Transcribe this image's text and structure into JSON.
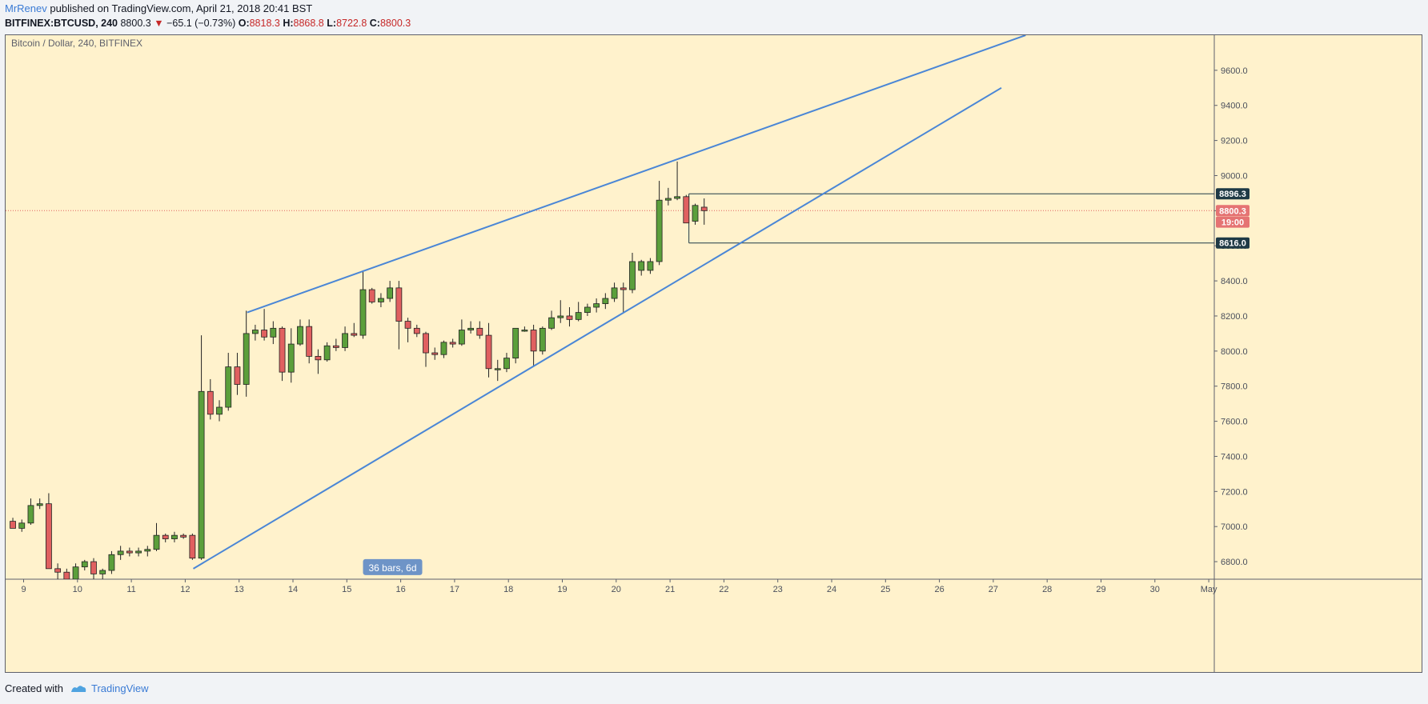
{
  "header": {
    "author": "MrRenev",
    "published": "published on TradingView.com, April 21, 2018 20:41 BST",
    "symbol": "BITFINEX:BTCUSD, 240",
    "last": "8800.3",
    "change_arrow": "▼",
    "change": "−65.1 (−0.73%)",
    "o_label": "O:",
    "o": "8818.3",
    "h_label": "H:",
    "h": "8868.8",
    "l_label": "L:",
    "l": "8722.8",
    "c_label": "C:",
    "c": "8800.3"
  },
  "chart_data": {
    "type": "candlestick",
    "title": "Bitcoin / Dollar, 240, BITFINEX",
    "ylim": [
      6700,
      9800
    ],
    "y_ticks": [
      6800,
      7000,
      7200,
      7400,
      7600,
      7800,
      8000,
      8200,
      8400,
      8600,
      8800,
      9000,
      9200,
      9400,
      9600
    ],
    "x_ticks": [
      {
        "label": "9",
        "day": 9
      },
      {
        "label": "10",
        "day": 10
      },
      {
        "label": "11",
        "day": 11
      },
      {
        "label": "12",
        "day": 12
      },
      {
        "label": "13",
        "day": 13
      },
      {
        "label": "14",
        "day": 14
      },
      {
        "label": "15",
        "day": 15
      },
      {
        "label": "16",
        "day": 16
      },
      {
        "label": "17",
        "day": 17
      },
      {
        "label": "18",
        "day": 18
      },
      {
        "label": "19",
        "day": 19
      },
      {
        "label": "20",
        "day": 20
      },
      {
        "label": "21",
        "day": 21
      },
      {
        "label": "22",
        "day": 22
      },
      {
        "label": "23",
        "day": 23
      },
      {
        "label": "24",
        "day": 24
      },
      {
        "label": "25",
        "day": 25
      },
      {
        "label": "26",
        "day": 26
      },
      {
        "label": "27",
        "day": 27
      },
      {
        "label": "28",
        "day": 28
      },
      {
        "label": "29",
        "day": 29
      },
      {
        "label": "30",
        "day": 30
      },
      {
        "label": "May",
        "day": 31
      }
    ],
    "candles_per_day": 6,
    "first_candle_day": 8.8,
    "candles": [
      {
        "o": 7030,
        "h": 7050,
        "l": 6990,
        "c": 6990
      },
      {
        "o": 6990,
        "h": 7040,
        "l": 6970,
        "c": 7020
      },
      {
        "o": 7020,
        "h": 7160,
        "l": 7010,
        "c": 7120
      },
      {
        "o": 7120,
        "h": 7160,
        "l": 7100,
        "c": 7130
      },
      {
        "o": 7130,
        "h": 7190,
        "l": 6760,
        "c": 6760
      },
      {
        "o": 6760,
        "h": 6790,
        "l": 6700,
        "c": 6740
      },
      {
        "o": 6740,
        "h": 6760,
        "l": 6700,
        "c": 6700
      },
      {
        "o": 6700,
        "h": 6790,
        "l": 6690,
        "c": 6770
      },
      {
        "o": 6770,
        "h": 6810,
        "l": 6750,
        "c": 6800
      },
      {
        "o": 6800,
        "h": 6820,
        "l": 6700,
        "c": 6730
      },
      {
        "o": 6730,
        "h": 6760,
        "l": 6700,
        "c": 6750
      },
      {
        "o": 6750,
        "h": 6860,
        "l": 6730,
        "c": 6840
      },
      {
        "o": 6840,
        "h": 6890,
        "l": 6810,
        "c": 6860
      },
      {
        "o": 6860,
        "h": 6880,
        "l": 6830,
        "c": 6850
      },
      {
        "o": 6850,
        "h": 6880,
        "l": 6830,
        "c": 6860
      },
      {
        "o": 6860,
        "h": 6890,
        "l": 6830,
        "c": 6870
      },
      {
        "o": 6870,
        "h": 7020,
        "l": 6860,
        "c": 6950
      },
      {
        "o": 6950,
        "h": 6960,
        "l": 6910,
        "c": 6930
      },
      {
        "o": 6930,
        "h": 6970,
        "l": 6910,
        "c": 6950
      },
      {
        "o": 6950,
        "h": 6960,
        "l": 6930,
        "c": 6940
      },
      {
        "o": 6950,
        "h": 6960,
        "l": 6810,
        "c": 6820
      },
      {
        "o": 6820,
        "h": 8090,
        "l": 6810,
        "c": 7770
      },
      {
        "o": 7770,
        "h": 7840,
        "l": 7610,
        "c": 7640
      },
      {
        "o": 7640,
        "h": 7720,
        "l": 7600,
        "c": 7680
      },
      {
        "o": 7680,
        "h": 7990,
        "l": 7660,
        "c": 7910
      },
      {
        "o": 7910,
        "h": 7990,
        "l": 7750,
        "c": 7810
      },
      {
        "o": 7810,
        "h": 8230,
        "l": 7740,
        "c": 8100
      },
      {
        "o": 8100,
        "h": 8150,
        "l": 8060,
        "c": 8120
      },
      {
        "o": 8120,
        "h": 8240,
        "l": 8060,
        "c": 8080
      },
      {
        "o": 8080,
        "h": 8170,
        "l": 8040,
        "c": 8130
      },
      {
        "o": 8130,
        "h": 8140,
        "l": 7830,
        "c": 7880
      },
      {
        "o": 7880,
        "h": 8130,
        "l": 7820,
        "c": 8040
      },
      {
        "o": 8040,
        "h": 8180,
        "l": 8030,
        "c": 8140
      },
      {
        "o": 8140,
        "h": 8180,
        "l": 7930,
        "c": 7970
      },
      {
        "o": 7970,
        "h": 8010,
        "l": 7870,
        "c": 7950
      },
      {
        "o": 7950,
        "h": 8050,
        "l": 7940,
        "c": 8030
      },
      {
        "o": 8030,
        "h": 8070,
        "l": 8000,
        "c": 8020
      },
      {
        "o": 8020,
        "h": 8140,
        "l": 8000,
        "c": 8100
      },
      {
        "o": 8100,
        "h": 8160,
        "l": 8080,
        "c": 8090
      },
      {
        "o": 8090,
        "h": 8460,
        "l": 8070,
        "c": 8350
      },
      {
        "o": 8350,
        "h": 8360,
        "l": 8270,
        "c": 8280
      },
      {
        "o": 8280,
        "h": 8330,
        "l": 8250,
        "c": 8300
      },
      {
        "o": 8300,
        "h": 8400,
        "l": 8280,
        "c": 8360
      },
      {
        "o": 8360,
        "h": 8400,
        "l": 8010,
        "c": 8170
      },
      {
        "o": 8170,
        "h": 8190,
        "l": 8050,
        "c": 8130
      },
      {
        "o": 8130,
        "h": 8150,
        "l": 8080,
        "c": 8100
      },
      {
        "o": 8100,
        "h": 8110,
        "l": 7910,
        "c": 7990
      },
      {
        "o": 7990,
        "h": 8020,
        "l": 7950,
        "c": 7980
      },
      {
        "o": 7980,
        "h": 8060,
        "l": 7960,
        "c": 8050
      },
      {
        "o": 8050,
        "h": 8070,
        "l": 8020,
        "c": 8040
      },
      {
        "o": 8040,
        "h": 8180,
        "l": 8030,
        "c": 8120
      },
      {
        "o": 8120,
        "h": 8170,
        "l": 8100,
        "c": 8130
      },
      {
        "o": 8130,
        "h": 8170,
        "l": 8070,
        "c": 8090
      },
      {
        "o": 8090,
        "h": 8160,
        "l": 7850,
        "c": 7900
      },
      {
        "o": 7900,
        "h": 7950,
        "l": 7830,
        "c": 7900
      },
      {
        "o": 7900,
        "h": 7990,
        "l": 7880,
        "c": 7960
      },
      {
        "o": 7960,
        "h": 8130,
        "l": 7930,
        "c": 8130
      },
      {
        "o": 8120,
        "h": 8140,
        "l": 8110,
        "c": 8120
      },
      {
        "o": 8120,
        "h": 8150,
        "l": 7910,
        "c": 8000
      },
      {
        "o": 8000,
        "h": 8140,
        "l": 7980,
        "c": 8130
      },
      {
        "o": 8130,
        "h": 8230,
        "l": 8120,
        "c": 8190
      },
      {
        "o": 8190,
        "h": 8290,
        "l": 8160,
        "c": 8200
      },
      {
        "o": 8200,
        "h": 8250,
        "l": 8140,
        "c": 8180
      },
      {
        "o": 8180,
        "h": 8280,
        "l": 8170,
        "c": 8220
      },
      {
        "o": 8220,
        "h": 8270,
        "l": 8200,
        "c": 8250
      },
      {
        "o": 8250,
        "h": 8300,
        "l": 8220,
        "c": 8270
      },
      {
        "o": 8270,
        "h": 8330,
        "l": 8240,
        "c": 8300
      },
      {
        "o": 8300,
        "h": 8390,
        "l": 8280,
        "c": 8360
      },
      {
        "o": 8360,
        "h": 8390,
        "l": 8220,
        "c": 8350
      },
      {
        "o": 8350,
        "h": 8560,
        "l": 8330,
        "c": 8510
      },
      {
        "o": 8460,
        "h": 8520,
        "l": 8430,
        "c": 8510
      },
      {
        "o": 8460,
        "h": 8530,
        "l": 8440,
        "c": 8510
      },
      {
        "o": 8510,
        "h": 8970,
        "l": 8490,
        "c": 8860
      },
      {
        "o": 8860,
        "h": 8930,
        "l": 8830,
        "c": 8870
      },
      {
        "o": 8870,
        "h": 9080,
        "l": 8860,
        "c": 8880
      },
      {
        "o": 8880,
        "h": 8890,
        "l": 8730,
        "c": 8730
      },
      {
        "o": 8740,
        "h": 8840,
        "l": 8720,
        "c": 8830
      },
      {
        "o": 8820,
        "h": 8870,
        "l": 8720,
        "c": 8800
      }
    ],
    "trendlines": [
      {
        "name": "upper",
        "x1": 13.15,
        "y1": 8220,
        "x2": 27.6,
        "y2": 9800
      },
      {
        "name": "lower",
        "x1": 12.15,
        "y1": 6760,
        "x2": 27.15,
        "y2": 9500
      }
    ],
    "price_range": {
      "top": 8896.3,
      "bottom": 8616.0,
      "x_start": 21.35
    },
    "last_price": 8800.3,
    "axis_labels": [
      {
        "text": "8896.3",
        "price": 8896.3,
        "color": "#1f3a46",
        "text_color": "#ffffff"
      },
      {
        "text": "8800.3",
        "price": 8800.3,
        "color": "#e57373",
        "text_color": "#ffffff"
      },
      {
        "text": "19:00",
        "price": 8735,
        "color": "#e57373",
        "text_color": "#ffffff"
      },
      {
        "text": "8616.0",
        "price": 8616.0,
        "color": "#1f3a46",
        "text_color": "#ffffff"
      }
    ],
    "bars_badge": {
      "text": "36 bars, 6d",
      "day": 15.85,
      "price": 6760
    }
  },
  "footer": {
    "created_with": "Created with",
    "brand": "TradingView"
  },
  "colors": {
    "background": "#fff2cc",
    "up": "#5b9f3b",
    "down": "#e06060",
    "trendline": "#4a86d6",
    "badge": "#6e94c7"
  }
}
